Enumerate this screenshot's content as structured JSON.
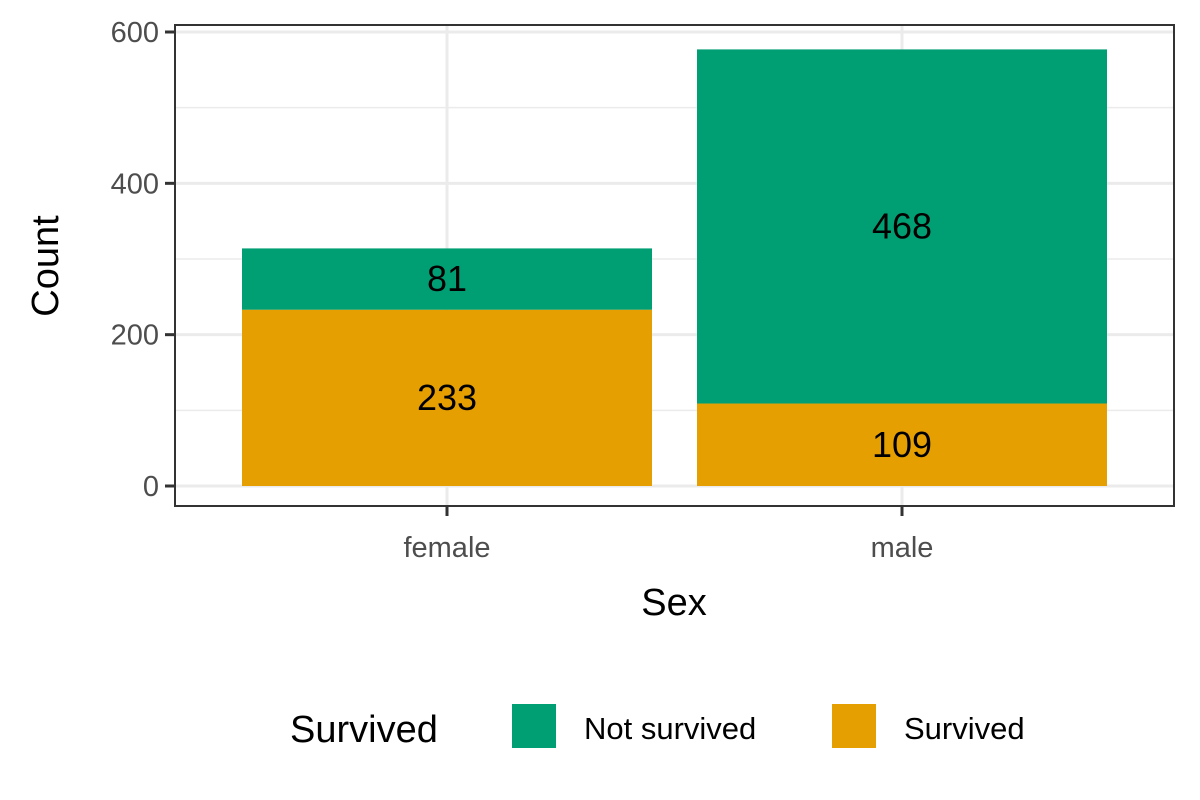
{
  "chart_data": {
    "type": "bar",
    "stacked": true,
    "categories": [
      "female",
      "male"
    ],
    "series": [
      {
        "name": "Survived",
        "values": [
          233,
          109
        ],
        "color": "#E69F00"
      },
      {
        "name": "Not survived",
        "values": [
          81,
          468
        ],
        "color": "#009E73"
      }
    ],
    "xlabel": "Sex",
    "ylabel": "Count",
    "ylim": [
      0,
      600
    ],
    "yticks": [
      0,
      200,
      400,
      600
    ],
    "grid": true,
    "legend": {
      "title": "Survived",
      "position": "bottom",
      "entries": [
        {
          "label": "Not survived",
          "color": "#009E73"
        },
        {
          "label": "Survived",
          "color": "#E69F00"
        }
      ]
    }
  }
}
